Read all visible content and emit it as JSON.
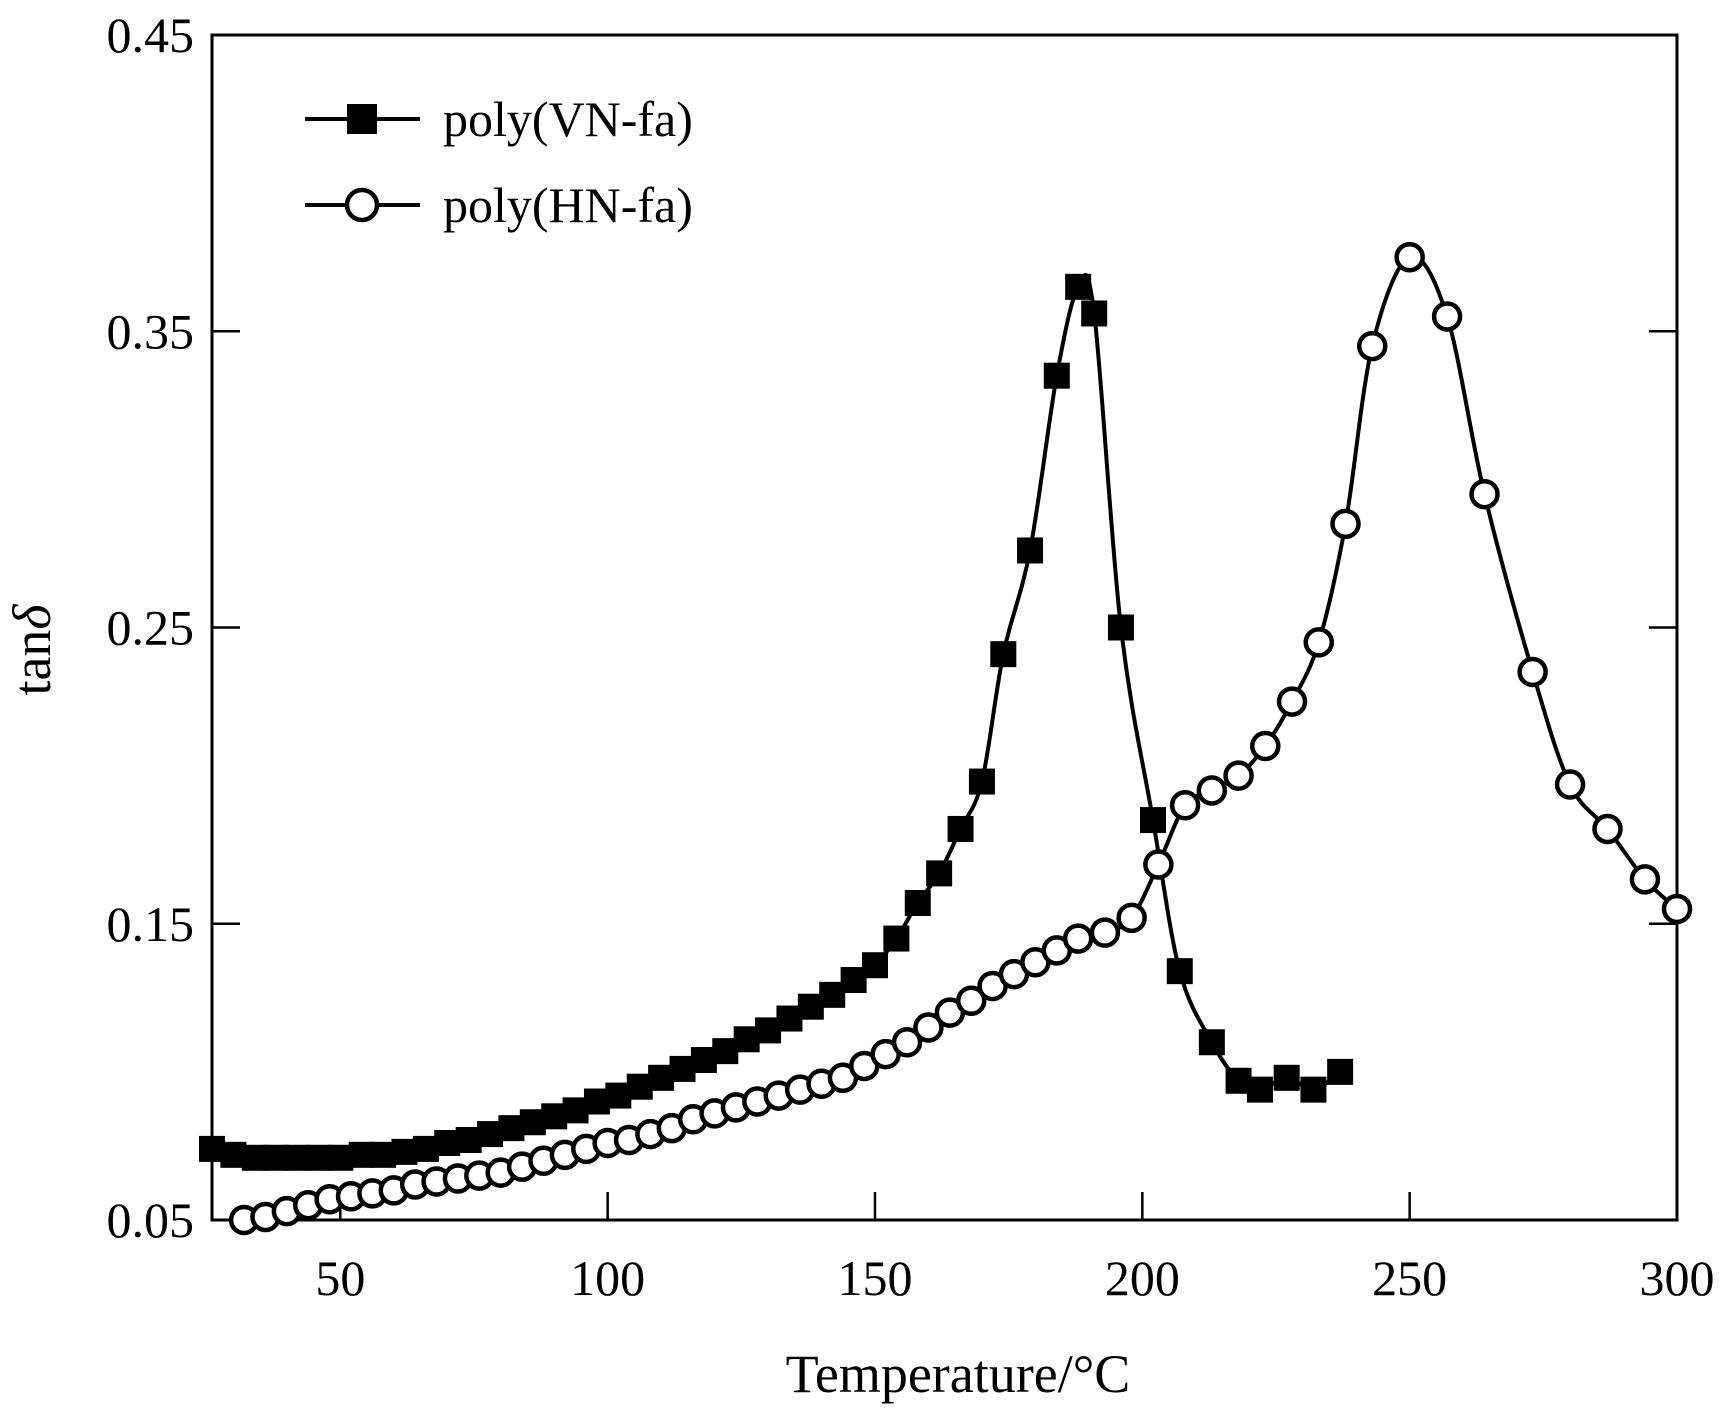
{
  "chart_data": {
    "type": "line",
    "title": "",
    "xlabel": "Temperature/°C",
    "ylabel_main": "tan",
    "ylabel_italic": "δ",
    "xlim": [
      26,
      300
    ],
    "ylim": [
      0.05,
      0.45
    ],
    "x_ticks": [
      50,
      100,
      150,
      200,
      250,
      300
    ],
    "x_tick_labels": [
      "50",
      "100",
      "150",
      "200",
      "250",
      "300"
    ],
    "y_ticks": [
      0.05,
      0.15,
      0.25,
      0.35,
      0.45
    ],
    "y_tick_labels": [
      "0.05",
      "0.15",
      "0.25",
      "0.35",
      "0.45"
    ],
    "grid": false,
    "legend_position": "top-left",
    "series": [
      {
        "name": "poly(VN-fa)",
        "marker": "filled-square",
        "color": "#000000",
        "x": [
          26,
          30,
          34,
          38,
          42,
          46,
          50,
          54,
          58,
          62,
          66,
          70,
          74,
          78,
          82,
          86,
          90,
          94,
          98,
          102,
          106,
          110,
          114,
          118,
          122,
          126,
          130,
          134,
          138,
          142,
          146,
          150,
          154,
          158,
          162,
          166,
          170,
          174,
          179,
          184,
          188,
          191,
          196,
          202,
          207,
          213,
          218,
          222,
          227,
          232,
          237
        ],
        "y": [
          0.074,
          0.072,
          0.071,
          0.071,
          0.071,
          0.071,
          0.071,
          0.072,
          0.072,
          0.073,
          0.074,
          0.076,
          0.077,
          0.079,
          0.081,
          0.083,
          0.085,
          0.087,
          0.09,
          0.092,
          0.095,
          0.098,
          0.101,
          0.104,
          0.107,
          0.111,
          0.114,
          0.118,
          0.122,
          0.126,
          0.131,
          0.136,
          0.145,
          0.157,
          0.167,
          0.182,
          0.198,
          0.241,
          0.276,
          0.335,
          0.365,
          0.356,
          0.25,
          0.185,
          0.134,
          0.11,
          0.097,
          0.094,
          0.098,
          0.094,
          0.1
        ]
      },
      {
        "name": "poly(HN-fa)",
        "marker": "open-circle",
        "color": "#000000",
        "x": [
          32,
          36,
          40,
          44,
          48,
          52,
          56,
          60,
          64,
          68,
          72,
          76,
          80,
          84,
          88,
          92,
          96,
          100,
          104,
          108,
          112,
          116,
          120,
          124,
          128,
          132,
          136,
          140,
          144,
          148,
          152,
          156,
          160,
          164,
          168,
          172,
          176,
          180,
          184,
          188,
          193,
          198,
          203,
          208,
          213,
          218,
          223,
          228,
          233,
          238,
          243,
          250,
          257,
          264,
          273,
          280,
          287,
          294,
          300
        ],
        "y": [
          0.05,
          0.051,
          0.053,
          0.055,
          0.057,
          0.058,
          0.059,
          0.06,
          0.062,
          0.063,
          0.064,
          0.065,
          0.066,
          0.068,
          0.07,
          0.072,
          0.074,
          0.076,
          0.077,
          0.079,
          0.081,
          0.084,
          0.086,
          0.088,
          0.09,
          0.092,
          0.094,
          0.096,
          0.098,
          0.102,
          0.106,
          0.11,
          0.115,
          0.12,
          0.124,
          0.129,
          0.133,
          0.137,
          0.141,
          0.145,
          0.147,
          0.152,
          0.17,
          0.19,
          0.195,
          0.2,
          0.21,
          0.225,
          0.245,
          0.285,
          0.345,
          0.375,
          0.355,
          0.295,
          0.235,
          0.197,
          0.182,
          0.165,
          0.155
        ]
      }
    ]
  }
}
